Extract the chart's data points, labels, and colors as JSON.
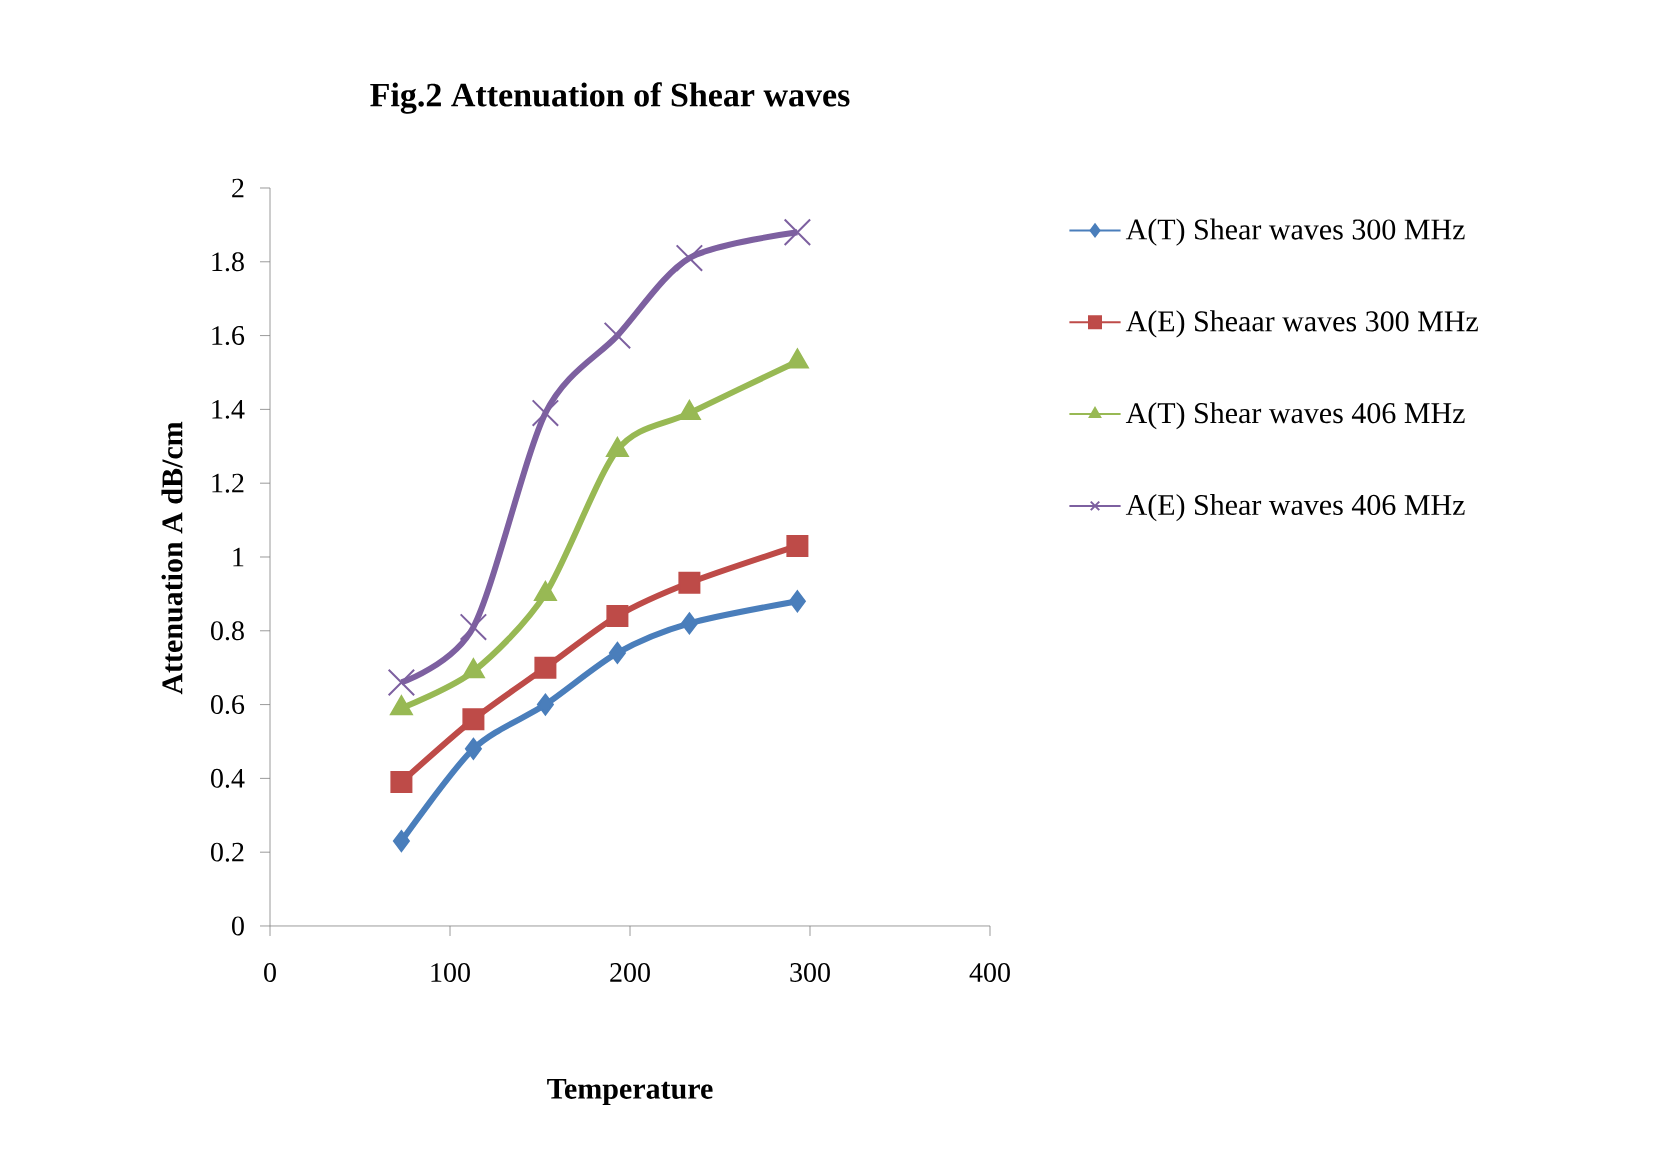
{
  "chart_data": {
    "type": "line",
    "title": "Fig.2 Attenuation of Shear waves",
    "xlabel": "Temperature",
    "ylabel": "Attenuation  A  dB/cm",
    "x": [
      73,
      113,
      153,
      193,
      233,
      293
    ],
    "series": [
      {
        "name": "A(T) Shear waves 300 MHz",
        "color": "#4a7ebb",
        "marker": "diamond",
        "values": [
          0.23,
          0.48,
          0.6,
          0.74,
          0.82,
          0.88
        ]
      },
      {
        "name": "A(E) Sheaar waves 300 MHz",
        "color": "#be4b48",
        "marker": "square",
        "values": [
          0.39,
          0.56,
          0.7,
          0.84,
          0.93,
          1.03
        ]
      },
      {
        "name": "A(T) Shear waves 406 MHz",
        "color": "#98b954",
        "marker": "triangle",
        "values": [
          0.59,
          0.69,
          0.9,
          1.29,
          1.39,
          1.53
        ]
      },
      {
        "name": "A(E) Shear waves 406 MHz",
        "color": "#7d60a0",
        "marker": "cross",
        "values": [
          0.66,
          0.81,
          1.39,
          1.6,
          1.81,
          1.88
        ]
      }
    ],
    "xlim": [
      0,
      400
    ],
    "xticks": [
      0,
      100,
      200,
      300,
      400
    ],
    "ylim": [
      0,
      2
    ],
    "yticks": [
      0,
      0.2,
      0.4,
      0.6,
      0.8,
      1,
      1.2,
      1.4,
      1.6,
      1.8,
      2
    ],
    "grid": false,
    "legend": "right",
    "line_style": "solid"
  }
}
